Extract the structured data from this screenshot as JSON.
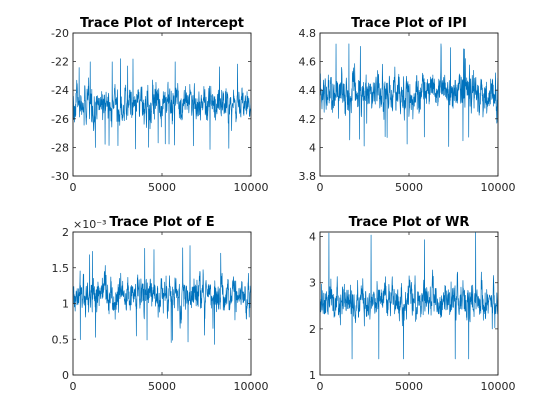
{
  "chart_data": [
    {
      "type": "line",
      "title": "Trace Plot of Intercept",
      "xlim": [
        0,
        10000
      ],
      "ylim": [
        -30,
        -20
      ],
      "xticks": [
        0,
        5000,
        10000
      ],
      "xtick_labels": [
        "0",
        "5000",
        "10000"
      ],
      "yticks": [
        -30,
        -28,
        -26,
        -24,
        -22,
        -20
      ],
      "ytick_labels": [
        "-30",
        "-28",
        "-26",
        "-24",
        "-22",
        "-20"
      ],
      "y_exponent_label": "",
      "n_samples": 10000,
      "series": [
        {
          "mean": -25.0,
          "spread": 1.1,
          "min": -28.7,
          "max": -21.8
        }
      ],
      "color": "#0072BD"
    },
    {
      "type": "line",
      "title": "Trace Plot of IPI",
      "xlim": [
        0,
        10000
      ],
      "ylim": [
        3.8,
        4.8
      ],
      "xticks": [
        0,
        5000,
        10000
      ],
      "xtick_labels": [
        "0",
        "5000",
        "10000"
      ],
      "yticks": [
        3.8,
        4.0,
        4.2,
        4.4,
        4.6,
        4.8
      ],
      "ytick_labels": [
        "3.8",
        "4",
        "4.2",
        "4.4",
        "4.6",
        "4.8"
      ],
      "y_exponent_label": "",
      "n_samples": 10000,
      "series": [
        {
          "mean": 4.38,
          "spread": 0.12,
          "min": 3.87,
          "max": 4.76
        }
      ],
      "color": "#0072BD"
    },
    {
      "type": "line",
      "title": "Trace Plot of E",
      "xlim": [
        0,
        10000
      ],
      "ylim": [
        0,
        0.002
      ],
      "xticks": [
        0,
        5000,
        10000
      ],
      "xtick_labels": [
        "0",
        "5000",
        "10000"
      ],
      "yticks": [
        0,
        0.0005,
        0.001,
        0.0015,
        0.002
      ],
      "ytick_labels": [
        "0",
        "0.5",
        "1",
        "1.5",
        "2"
      ],
      "y_exponent_label": "×10⁻³",
      "n_samples": 10000,
      "series": [
        {
          "mean": 0.00112,
          "spread": 0.00022,
          "min": 0.00024,
          "max": 0.00182
        }
      ],
      "color": "#0072BD"
    },
    {
      "type": "line",
      "title": "Trace Plot of WR",
      "xlim": [
        0,
        10000
      ],
      "ylim": [
        1,
        4.1
      ],
      "xticks": [
        0,
        5000,
        10000
      ],
      "xtick_labels": [
        "0",
        "5000",
        "10000"
      ],
      "yticks": [
        1,
        2,
        3,
        4
      ],
      "ytick_labels": [
        "1",
        "2",
        "3",
        "4"
      ],
      "y_exponent_label": "",
      "n_samples": 10000,
      "series": [
        {
          "mean": 2.6,
          "spread": 0.35,
          "min": 1.35,
          "max": 4.1
        }
      ],
      "color": "#0072BD"
    }
  ]
}
